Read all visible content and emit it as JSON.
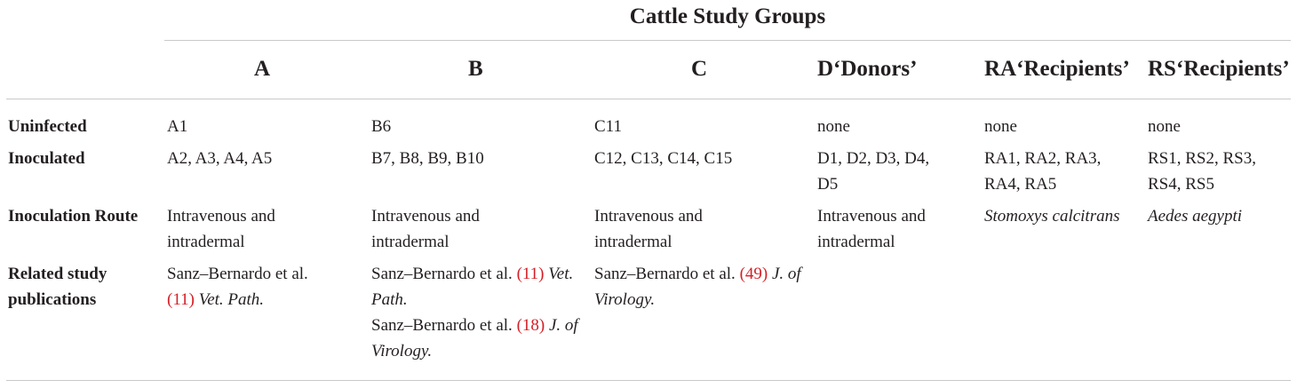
{
  "table": {
    "supertitle": "Cattle Study Groups",
    "columns": [
      "A",
      "B",
      "C",
      "D‘Donors’",
      "RA‘Recipients’",
      "RS‘Recipients’"
    ],
    "rows": [
      {
        "header": "Uninfected",
        "cells": [
          "A1",
          "B6",
          "C11",
          "none",
          "none",
          "none"
        ]
      },
      {
        "header": "Inoculated",
        "cells": [
          "A2, A3, A4, A5",
          "B7, B8, B9, B10",
          "C12, C13, C14, C15",
          "D1, D2, D3, D4, D5",
          "RA1, RA2, RA3, RA4, RA5",
          "RS1, RS2, RS3, RS4, RS5"
        ]
      },
      {
        "header": "Inoculation Route",
        "cells": [
          "Intravenous and intradermal",
          "Intravenous and intradermal",
          "Intravenous and intradermal",
          "Intravenous and intradermal",
          "Stomoxys calcitrans",
          "Aedes aegypti"
        ]
      },
      {
        "header": "Related study publications",
        "pubs": {
          "a": {
            "author": "Sanz–Bernardo et al.",
            "ref": "(11)",
            "journal": "Vet. Path."
          },
          "b1": {
            "author": "Sanz–Bernardo et al.",
            "ref": "(11)",
            "journal": "Vet. Path."
          },
          "b2": {
            "author": "Sanz–Bernardo et al.",
            "ref": "(18)",
            "journal": "J. of Virology."
          },
          "c": {
            "author": "Sanz–Bernardo et al.",
            "ref": "(49)",
            "journal": "J. of Virology."
          }
        }
      }
    ]
  }
}
